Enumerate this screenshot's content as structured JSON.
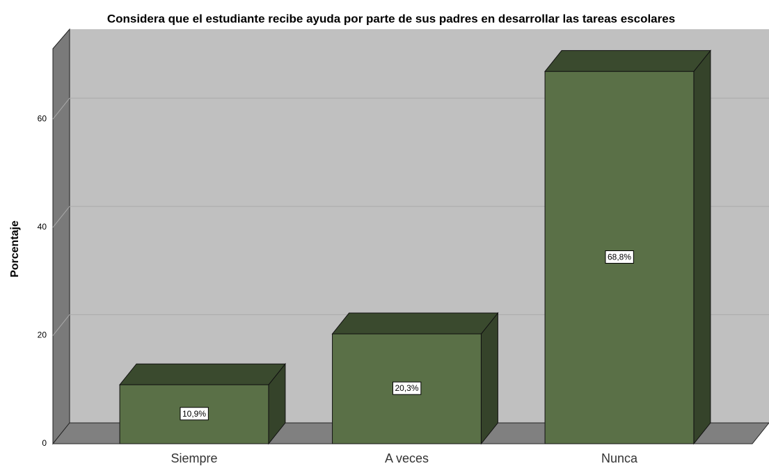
{
  "chart_data": {
    "type": "bar3d",
    "title": "Considera que el estudiante recibe ayuda por parte de sus padres en desarrollar las tareas escolares",
    "ylabel": "Porcentaje",
    "categories": [
      "Siempre",
      "A veces",
      "Nunca"
    ],
    "values": [
      10.9,
      20.3,
      68.8
    ],
    "value_labels": [
      "10,9%",
      "20,3%",
      "68,8%"
    ],
    "color": "#5a7047",
    "ylim": [
      0,
      73
    ],
    "yticks": [
      0,
      20,
      40,
      60
    ],
    "grid": true
  }
}
